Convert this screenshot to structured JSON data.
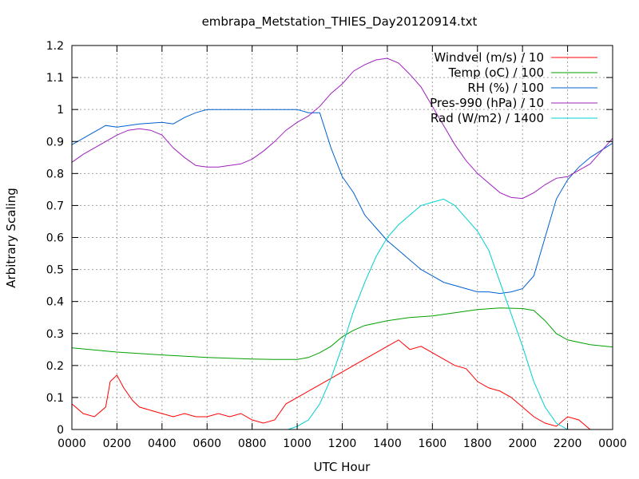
{
  "chart_data": {
    "type": "line",
    "title": "embrapa_Metstation_THIES_Day20120914.txt",
    "xlabel": "UTC Hour",
    "ylabel": "Arbitrary Scaling",
    "xlim": [
      0,
      24
    ],
    "ylim": [
      0,
      1.2
    ],
    "grid": true,
    "legend_position": "top-right",
    "x_ticks": [
      "0000",
      "0200",
      "0400",
      "0600",
      "0800",
      "1000",
      "1200",
      "1400",
      "1600",
      "1800",
      "2000",
      "2200",
      "0000"
    ],
    "y_ticks": [
      "0",
      "0.1",
      "0.2",
      "0.3",
      "0.4",
      "0.5",
      "0.6",
      "0.7",
      "0.8",
      "0.9",
      "1",
      "1.1",
      "1.2"
    ],
    "series": [
      {
        "name": "Windvel (m/s) / 10",
        "color": "#ff0000",
        "points": [
          [
            0,
            0.08
          ],
          [
            0.5,
            0.05
          ],
          [
            1,
            0.04
          ],
          [
            1.5,
            0.07
          ],
          [
            1.7,
            0.15
          ],
          [
            2,
            0.17
          ],
          [
            2.3,
            0.13
          ],
          [
            2.7,
            0.09
          ],
          [
            3,
            0.07
          ],
          [
            3.5,
            0.06
          ],
          [
            4,
            0.05
          ],
          [
            4.5,
            0.04
          ],
          [
            5,
            0.05
          ],
          [
            5.5,
            0.04
          ],
          [
            6,
            0.04
          ],
          [
            6.5,
            0.05
          ],
          [
            7,
            0.04
          ],
          [
            7.5,
            0.05
          ],
          [
            8,
            0.03
          ],
          [
            8.5,
            0.02
          ],
          [
            9,
            0.03
          ],
          [
            9.5,
            0.08
          ],
          [
            10,
            0.1
          ],
          [
            10.5,
            0.12
          ],
          [
            11,
            0.14
          ],
          [
            11.5,
            0.16
          ],
          [
            12,
            0.18
          ],
          [
            12.5,
            0.2
          ],
          [
            13,
            0.22
          ],
          [
            13.5,
            0.24
          ],
          [
            14,
            0.26
          ],
          [
            14.5,
            0.28
          ],
          [
            15,
            0.25
          ],
          [
            15.5,
            0.26
          ],
          [
            16,
            0.24
          ],
          [
            16.5,
            0.22
          ],
          [
            17,
            0.2
          ],
          [
            17.5,
            0.19
          ],
          [
            18,
            0.15
          ],
          [
            18.5,
            0.13
          ],
          [
            19,
            0.12
          ],
          [
            19.5,
            0.1
          ],
          [
            20,
            0.07
          ],
          [
            20.5,
            0.04
          ],
          [
            21,
            0.02
          ],
          [
            21.5,
            0.01
          ],
          [
            22,
            0.04
          ],
          [
            22.5,
            0.03
          ],
          [
            23,
            0.0
          ]
        ]
      },
      {
        "name": "Temp (oC) / 100",
        "color": "#00a000",
        "points": [
          [
            0,
            0.255
          ],
          [
            2,
            0.242
          ],
          [
            4,
            0.233
          ],
          [
            6,
            0.225
          ],
          [
            8,
            0.22
          ],
          [
            9,
            0.219
          ],
          [
            10,
            0.219
          ],
          [
            10.5,
            0.225
          ],
          [
            11,
            0.24
          ],
          [
            11.5,
            0.26
          ],
          [
            12,
            0.29
          ],
          [
            12.5,
            0.31
          ],
          [
            13,
            0.325
          ],
          [
            14,
            0.34
          ],
          [
            15,
            0.35
          ],
          [
            16,
            0.355
          ],
          [
            17,
            0.365
          ],
          [
            18,
            0.375
          ],
          [
            19,
            0.38
          ],
          [
            20,
            0.378
          ],
          [
            20.5,
            0.372
          ],
          [
            21,
            0.34
          ],
          [
            21.5,
            0.3
          ],
          [
            22,
            0.28
          ],
          [
            23,
            0.265
          ],
          [
            24,
            0.258
          ]
        ]
      },
      {
        "name": "RH (%) / 100",
        "color": "#0060d0",
        "points": [
          [
            0,
            0.89
          ],
          [
            1,
            0.93
          ],
          [
            1.5,
            0.95
          ],
          [
            2,
            0.945
          ],
          [
            3,
            0.955
          ],
          [
            4,
            0.96
          ],
          [
            4.5,
            0.955
          ],
          [
            5,
            0.975
          ],
          [
            5.5,
            0.99
          ],
          [
            6,
            1.0
          ],
          [
            7,
            1.0
          ],
          [
            8,
            1.0
          ],
          [
            9,
            1.0
          ],
          [
            10,
            1.0
          ],
          [
            10.5,
            0.99
          ],
          [
            11,
            0.99
          ],
          [
            11.5,
            0.88
          ],
          [
            12,
            0.79
          ],
          [
            12.5,
            0.74
          ],
          [
            13,
            0.67
          ],
          [
            13.5,
            0.63
          ],
          [
            14,
            0.59
          ],
          [
            14.5,
            0.56
          ],
          [
            15,
            0.53
          ],
          [
            15.5,
            0.5
          ],
          [
            16,
            0.48
          ],
          [
            16.5,
            0.46
          ],
          [
            17,
            0.45
          ],
          [
            17.5,
            0.44
          ],
          [
            18,
            0.43
          ],
          [
            18.5,
            0.43
          ],
          [
            19,
            0.425
          ],
          [
            19.5,
            0.43
          ],
          [
            20,
            0.44
          ],
          [
            20.5,
            0.48
          ],
          [
            21,
            0.6
          ],
          [
            21.5,
            0.72
          ],
          [
            22,
            0.78
          ],
          [
            22.5,
            0.82
          ],
          [
            23,
            0.85
          ],
          [
            24,
            0.895
          ]
        ]
      },
      {
        "name": "Pres-990 (hPa) / 10",
        "color": "#a020c0",
        "points": [
          [
            0,
            0.835
          ],
          [
            0.5,
            0.86
          ],
          [
            1,
            0.88
          ],
          [
            1.5,
            0.9
          ],
          [
            2,
            0.92
          ],
          [
            2.5,
            0.935
          ],
          [
            3,
            0.94
          ],
          [
            3.5,
            0.935
          ],
          [
            4,
            0.92
          ],
          [
            4.5,
            0.88
          ],
          [
            5,
            0.85
          ],
          [
            5.5,
            0.825
          ],
          [
            6,
            0.82
          ],
          [
            6.5,
            0.82
          ],
          [
            7,
            0.825
          ],
          [
            7.5,
            0.83
          ],
          [
            8,
            0.845
          ],
          [
            8.5,
            0.87
          ],
          [
            9,
            0.9
          ],
          [
            9.5,
            0.935
          ],
          [
            10,
            0.96
          ],
          [
            10.5,
            0.98
          ],
          [
            11,
            1.01
          ],
          [
            11.5,
            1.05
          ],
          [
            12,
            1.08
          ],
          [
            12.5,
            1.12
          ],
          [
            13,
            1.14
          ],
          [
            13.5,
            1.155
          ],
          [
            14,
            1.16
          ],
          [
            14.5,
            1.145
          ],
          [
            15,
            1.11
          ],
          [
            15.5,
            1.07
          ],
          [
            16,
            1.01
          ],
          [
            16.5,
            0.95
          ],
          [
            17,
            0.89
          ],
          [
            17.5,
            0.84
          ],
          [
            18,
            0.8
          ],
          [
            18.5,
            0.77
          ],
          [
            19,
            0.74
          ],
          [
            19.5,
            0.725
          ],
          [
            20,
            0.722
          ],
          [
            20.5,
            0.74
          ],
          [
            21,
            0.765
          ],
          [
            21.5,
            0.785
          ],
          [
            22,
            0.79
          ],
          [
            22.5,
            0.81
          ],
          [
            23,
            0.83
          ],
          [
            23.5,
            0.87
          ],
          [
            24,
            0.91
          ]
        ]
      },
      {
        "name": "Rad (W/m2) / 1400",
        "color": "#00d0d0",
        "points": [
          [
            9.6,
            0.0
          ],
          [
            10,
            0.01
          ],
          [
            10.5,
            0.03
          ],
          [
            11,
            0.08
          ],
          [
            11.5,
            0.16
          ],
          [
            12,
            0.26
          ],
          [
            12.5,
            0.37
          ],
          [
            13,
            0.46
          ],
          [
            13.5,
            0.54
          ],
          [
            14,
            0.6
          ],
          [
            14.5,
            0.64
          ],
          [
            15,
            0.67
          ],
          [
            15.5,
            0.7
          ],
          [
            16,
            0.71
          ],
          [
            16.5,
            0.72
          ],
          [
            17,
            0.7
          ],
          [
            17.5,
            0.66
          ],
          [
            18,
            0.62
          ],
          [
            18.5,
            0.56
          ],
          [
            19,
            0.46
          ],
          [
            19.5,
            0.36
          ],
          [
            20,
            0.26
          ],
          [
            20.5,
            0.15
          ],
          [
            21,
            0.07
          ],
          [
            21.5,
            0.02
          ],
          [
            22,
            0.0
          ]
        ]
      }
    ]
  }
}
